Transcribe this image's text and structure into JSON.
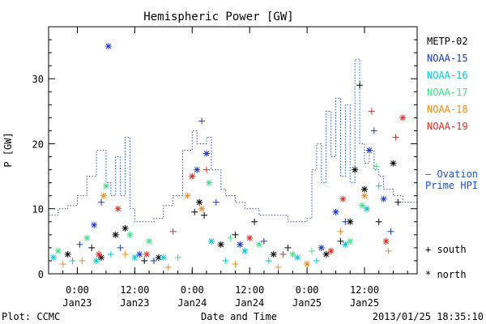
{
  "chart_data": {
    "type": "scatter",
    "title": "Hemispheric Power [GW]",
    "xlabel": "Date and Time",
    "ylabel": "P [GW]",
    "ylim": [
      0,
      38
    ],
    "xlim": [
      "2013-01-22T18:00",
      "2013-01-25T23:00"
    ],
    "grid": false,
    "legend_position": "right",
    "x_ticks": [
      {
        "x": "2013-01-23T00:00",
        "time": "0:00",
        "date": "Jan23"
      },
      {
        "x": "2013-01-23T12:00",
        "time": "12:00",
        "date": "Jan23"
      },
      {
        "x": "2013-01-24T00:00",
        "time": "0:00",
        "date": "Jan24"
      },
      {
        "x": "2013-01-24T12:00",
        "time": "12:00",
        "date": "Jan24"
      },
      {
        "x": "2013-01-25T00:00",
        "time": "0:00",
        "date": "Jan25"
      },
      {
        "x": "2013-01-25T12:00",
        "time": "12:00",
        "date": "Jan25"
      }
    ],
    "y_ticks": [
      0,
      10,
      20,
      30
    ],
    "series": [
      {
        "name": "METP-02",
        "color": "#000000",
        "points": [
          {
            "x": "2013-01-22T22:00",
            "y": 3.0,
            "m": "*"
          },
          {
            "x": "2013-01-23T03:00",
            "y": 4.0,
            "m": "+"
          },
          {
            "x": "2013-01-23T05:00",
            "y": 2.5,
            "m": "*"
          },
          {
            "x": "2013-01-23T08:00",
            "y": 6.0,
            "m": "*"
          },
          {
            "x": "2013-01-23T10:00",
            "y": 7.0,
            "m": "*"
          },
          {
            "x": "2013-01-23T14:00",
            "y": 2.0,
            "m": "+"
          },
          {
            "x": "2013-01-23T17:00",
            "y": 2.5,
            "m": "*"
          },
          {
            "x": "2013-01-24T00:30",
            "y": 9.5,
            "m": "+"
          },
          {
            "x": "2013-01-24T01:30",
            "y": 11.0,
            "m": "*"
          },
          {
            "x": "2013-01-24T02:30",
            "y": 9.0,
            "m": "+"
          },
          {
            "x": "2013-01-24T06:00",
            "y": 4.5,
            "m": "*"
          },
          {
            "x": "2013-01-24T09:00",
            "y": 6.0,
            "m": "+"
          },
          {
            "x": "2013-01-24T13:00",
            "y": 8.0,
            "m": "+"
          },
          {
            "x": "2013-01-24T17:00",
            "y": 3.0,
            "m": "*"
          },
          {
            "x": "2013-01-24T20:00",
            "y": 4.0,
            "m": "+"
          },
          {
            "x": "2013-01-25T04:00",
            "y": 3.0,
            "m": "*"
          },
          {
            "x": "2013-01-25T07:00",
            "y": 5.0,
            "m": "+"
          },
          {
            "x": "2013-01-25T09:00",
            "y": 8.0,
            "m": "*"
          },
          {
            "x": "2013-01-25T10:00",
            "y": 16.0,
            "m": "*"
          },
          {
            "x": "2013-01-25T11:00",
            "y": 29.0,
            "m": "+"
          },
          {
            "x": "2013-01-25T12:00",
            "y": 13.0,
            "m": "*"
          },
          {
            "x": "2013-01-25T15:00",
            "y": 8.0,
            "m": "+"
          },
          {
            "x": "2013-01-25T18:00",
            "y": 17.0,
            "m": "*"
          },
          {
            "x": "2013-01-25T19:00",
            "y": 11.0,
            "m": "+"
          }
        ]
      },
      {
        "name": "NOAA-15",
        "color": "#1a35c8",
        "points": [
          {
            "x": "2013-01-23T00:30",
            "y": 4.5,
            "m": "+"
          },
          {
            "x": "2013-01-23T03:30",
            "y": 7.5,
            "m": "*"
          },
          {
            "x": "2013-01-23T05:00",
            "y": 11.0,
            "m": "+"
          },
          {
            "x": "2013-01-23T06:30",
            "y": 35.0,
            "m": "*"
          },
          {
            "x": "2013-01-23T09:00",
            "y": 4.0,
            "m": "+"
          },
          {
            "x": "2013-01-23T13:00",
            "y": 3.0,
            "m": "*"
          },
          {
            "x": "2013-01-23T16:00",
            "y": 2.0,
            "m": "+"
          },
          {
            "x": "2013-01-24T01:00",
            "y": 16.0,
            "m": "*"
          },
          {
            "x": "2013-01-24T02:00",
            "y": 23.5,
            "m": "+"
          },
          {
            "x": "2013-01-24T03:00",
            "y": 18.5,
            "m": "*"
          },
          {
            "x": "2013-01-24T05:00",
            "y": 11.0,
            "m": "+"
          },
          {
            "x": "2013-01-24T10:00",
            "y": 4.5,
            "m": "*"
          },
          {
            "x": "2013-01-24T15:00",
            "y": 5.0,
            "m": "+"
          },
          {
            "x": "2013-01-25T03:00",
            "y": 4.0,
            "m": "*"
          },
          {
            "x": "2013-01-25T06:00",
            "y": 9.5,
            "m": "*"
          },
          {
            "x": "2013-01-25T08:00",
            "y": 8.0,
            "m": "+"
          },
          {
            "x": "2013-01-25T13:00",
            "y": 19.0,
            "m": "*"
          },
          {
            "x": "2013-01-25T14:00",
            "y": 22.0,
            "m": "+"
          },
          {
            "x": "2013-01-25T16:00",
            "y": 11.5,
            "m": "*"
          },
          {
            "x": "2013-01-25T17:30",
            "y": 6.5,
            "m": "+"
          }
        ]
      },
      {
        "name": "NOAA-16",
        "color": "#00c8d8",
        "points": [
          {
            "x": "2013-01-22T19:00",
            "y": 2.5,
            "m": "*"
          },
          {
            "x": "2013-01-22T23:00",
            "y": 2.0,
            "m": "+"
          },
          {
            "x": "2013-01-23T04:00",
            "y": 2.0,
            "m": "*"
          },
          {
            "x": "2013-01-23T07:00",
            "y": 3.0,
            "m": "+"
          },
          {
            "x": "2013-01-23T12:00",
            "y": 2.5,
            "m": "*"
          },
          {
            "x": "2013-01-23T18:00",
            "y": 2.5,
            "m": "*"
          },
          {
            "x": "2013-01-24T04:00",
            "y": 5.0,
            "m": "*"
          },
          {
            "x": "2013-01-24T07:00",
            "y": 2.0,
            "m": "+"
          },
          {
            "x": "2013-01-24T11:00",
            "y": 3.5,
            "m": "*"
          },
          {
            "x": "2013-01-24T16:00",
            "y": 2.0,
            "m": "+"
          },
          {
            "x": "2013-01-24T22:00",
            "y": 2.5,
            "m": "*"
          },
          {
            "x": "2013-01-25T02:00",
            "y": 2.0,
            "m": "+"
          },
          {
            "x": "2013-01-25T08:00",
            "y": 4.5,
            "m": "*"
          },
          {
            "x": "2013-01-25T12:30",
            "y": 10.0,
            "m": "*"
          },
          {
            "x": "2013-01-25T15:00",
            "y": 13.5,
            "m": "+"
          }
        ]
      },
      {
        "name": "NOAA-17",
        "color": "#3ee08a",
        "points": [
          {
            "x": "2013-01-22T20:00",
            "y": 3.5,
            "m": "*"
          },
          {
            "x": "2013-01-23T02:00",
            "y": 5.5,
            "m": "*"
          },
          {
            "x": "2013-01-23T06:00",
            "y": 13.5,
            "m": "*"
          },
          {
            "x": "2013-01-23T11:00",
            "y": 6.0,
            "m": "*"
          },
          {
            "x": "2013-01-23T15:00",
            "y": 5.0,
            "m": "*"
          },
          {
            "x": "2013-01-23T21:00",
            "y": 2.5,
            "m": "+"
          },
          {
            "x": "2013-01-24T03:30",
            "y": 14.0,
            "m": "*"
          },
          {
            "x": "2013-01-24T08:00",
            "y": 5.5,
            "m": "+"
          },
          {
            "x": "2013-01-24T14:00",
            "y": 4.5,
            "m": "*"
          },
          {
            "x": "2013-01-24T21:00",
            "y": 3.0,
            "m": "*"
          },
          {
            "x": "2013-01-25T01:00",
            "y": 3.5,
            "m": "+"
          },
          {
            "x": "2013-01-25T09:00",
            "y": 5.0,
            "m": "*"
          },
          {
            "x": "2013-01-25T11:30",
            "y": 10.5,
            "m": "*"
          },
          {
            "x": "2013-01-25T14:30",
            "y": 16.5,
            "m": "+"
          }
        ]
      },
      {
        "name": "NOAA-18",
        "color": "#f08818",
        "points": [
          {
            "x": "2013-01-22T21:00",
            "y": 1.5,
            "m": "+"
          },
          {
            "x": "2013-01-23T01:00",
            "y": 2.0,
            "m": "+"
          },
          {
            "x": "2013-01-23T05:30",
            "y": 12.0,
            "m": "*"
          },
          {
            "x": "2013-01-23T10:00",
            "y": 3.0,
            "m": "+"
          },
          {
            "x": "2013-01-23T19:00",
            "y": 1.0,
            "m": "+"
          },
          {
            "x": "2013-01-23T23:00",
            "y": 12.0,
            "m": "*"
          },
          {
            "x": "2013-01-24T02:00",
            "y": 10.0,
            "m": "*"
          },
          {
            "x": "2013-01-24T09:00",
            "y": 1.5,
            "m": "+"
          },
          {
            "x": "2013-01-24T18:00",
            "y": 1.0,
            "m": "+"
          },
          {
            "x": "2013-01-25T00:00",
            "y": 1.5,
            "m": "*"
          },
          {
            "x": "2013-01-25T07:00",
            "y": 6.5,
            "m": "+"
          },
          {
            "x": "2013-01-25T12:00",
            "y": 12.0,
            "m": "*"
          },
          {
            "x": "2013-01-25T17:00",
            "y": 3.5,
            "m": "+"
          }
        ]
      },
      {
        "name": "NOAA-19",
        "color": "#e8281c",
        "points": [
          {
            "x": "2013-01-23T04:30",
            "y": 3.0,
            "m": "*"
          },
          {
            "x": "2013-01-23T08:30",
            "y": 10.0,
            "m": "*"
          },
          {
            "x": "2013-01-23T14:30",
            "y": 3.0,
            "m": "*"
          },
          {
            "x": "2013-01-23T20:00",
            "y": 6.5,
            "m": "+"
          },
          {
            "x": "2013-01-24T00:00",
            "y": 15.0,
            "m": "*"
          },
          {
            "x": "2013-01-24T03:00",
            "y": 16.0,
            "m": "+"
          },
          {
            "x": "2013-01-24T12:00",
            "y": 5.5,
            "m": "*"
          },
          {
            "x": "2013-01-24T19:00",
            "y": 3.0,
            "m": "+"
          },
          {
            "x": "2013-01-25T05:00",
            "y": 3.5,
            "m": "*"
          },
          {
            "x": "2013-01-25T07:30",
            "y": 11.5,
            "m": "*"
          },
          {
            "x": "2013-01-25T13:30",
            "y": 25.0,
            "m": "+"
          },
          {
            "x": "2013-01-25T16:30",
            "y": 5.0,
            "m": "*"
          },
          {
            "x": "2013-01-25T18:30",
            "y": 21.0,
            "m": "+"
          },
          {
            "x": "2013-01-25T20:00",
            "y": 24.0,
            "m": "*"
          }
        ]
      },
      {
        "name": "Ovation Prime HPI",
        "color": "#1a4fd0",
        "line_style": "dotted-step",
        "points": [
          {
            "x": "2013-01-22T18:00",
            "y": 9.0
          },
          {
            "x": "2013-01-22T20:00",
            "y": 10.0
          },
          {
            "x": "2013-01-22T22:00",
            "y": 10.5
          },
          {
            "x": "2013-01-23T00:00",
            "y": 12.0
          },
          {
            "x": "2013-01-23T02:00",
            "y": 15.0
          },
          {
            "x": "2013-01-23T04:00",
            "y": 19.0
          },
          {
            "x": "2013-01-23T06:00",
            "y": 14.0
          },
          {
            "x": "2013-01-23T07:00",
            "y": 12.0
          },
          {
            "x": "2013-01-23T08:00",
            "y": 18.0
          },
          {
            "x": "2013-01-23T09:00",
            "y": 12.0
          },
          {
            "x": "2013-01-23T10:00",
            "y": 21.0
          },
          {
            "x": "2013-01-23T11:00",
            "y": 10.0
          },
          {
            "x": "2013-01-23T12:00",
            "y": 8.0
          },
          {
            "x": "2013-01-23T16:00",
            "y": 8.5
          },
          {
            "x": "2013-01-23T18:00",
            "y": 10.5
          },
          {
            "x": "2013-01-23T20:00",
            "y": 12.0
          },
          {
            "x": "2013-01-23T22:00",
            "y": 19.0
          },
          {
            "x": "2013-01-24T00:00",
            "y": 22.0
          },
          {
            "x": "2013-01-24T01:00",
            "y": 20.0
          },
          {
            "x": "2013-01-24T03:00",
            "y": 21.0
          },
          {
            "x": "2013-01-24T04:00",
            "y": 16.0
          },
          {
            "x": "2013-01-24T06:00",
            "y": 13.0
          },
          {
            "x": "2013-01-24T07:00",
            "y": 12.0
          },
          {
            "x": "2013-01-24T09:00",
            "y": 11.0
          },
          {
            "x": "2013-01-24T11:00",
            "y": 10.0
          },
          {
            "x": "2013-01-24T14:00",
            "y": 9.0
          },
          {
            "x": "2013-01-24T20:00",
            "y": 8.0
          },
          {
            "x": "2013-01-25T00:00",
            "y": 8.5
          },
          {
            "x": "2013-01-25T01:00",
            "y": 16.0
          },
          {
            "x": "2013-01-25T02:00",
            "y": 20.0
          },
          {
            "x": "2013-01-25T03:00",
            "y": 14.0
          },
          {
            "x": "2013-01-25T04:00",
            "y": 25.0
          },
          {
            "x": "2013-01-25T05:00",
            "y": 18.0
          },
          {
            "x": "2013-01-25T06:00",
            "y": 27.0
          },
          {
            "x": "2013-01-25T07:00",
            "y": 15.0
          },
          {
            "x": "2013-01-25T08:00",
            "y": 26.0
          },
          {
            "x": "2013-01-25T09:00",
            "y": 14.0
          },
          {
            "x": "2013-01-25T10:00",
            "y": 33.0
          },
          {
            "x": "2013-01-25T11:00",
            "y": 20.0
          },
          {
            "x": "2013-01-25T12:00",
            "y": 17.0
          },
          {
            "x": "2013-01-25T13:00",
            "y": 19.0
          },
          {
            "x": "2013-01-25T14:00",
            "y": 16.0
          },
          {
            "x": "2013-01-25T15:00",
            "y": 15.0
          },
          {
            "x": "2013-01-25T16:00",
            "y": 13.0
          },
          {
            "x": "2013-01-25T18:00",
            "y": 12.0
          },
          {
            "x": "2013-01-25T20:00",
            "y": 11.0
          }
        ]
      }
    ],
    "legend": {
      "items": [
        {
          "label": "METP-02",
          "color": "#000000"
        },
        {
          "label": "NOAA-15",
          "color": "#1a35c8"
        },
        {
          "label": "NOAA-16",
          "color": "#00c8d8"
        },
        {
          "label": "NOAA-17",
          "color": "#3ee08a"
        },
        {
          "label": "NOAA-18",
          "color": "#f08818"
        },
        {
          "label": "NOAA-19",
          "color": "#e8281c"
        }
      ],
      "ovation_line1": "– Ovation",
      "ovation_line2": "Prime HPI",
      "ovation_color": "#1a4fd0",
      "marker_south": "+ south",
      "marker_north": "* north"
    }
  },
  "footer": {
    "plot_credit": "Plot: CCMC",
    "timestamp": "2013/01/25 18:35:10"
  }
}
